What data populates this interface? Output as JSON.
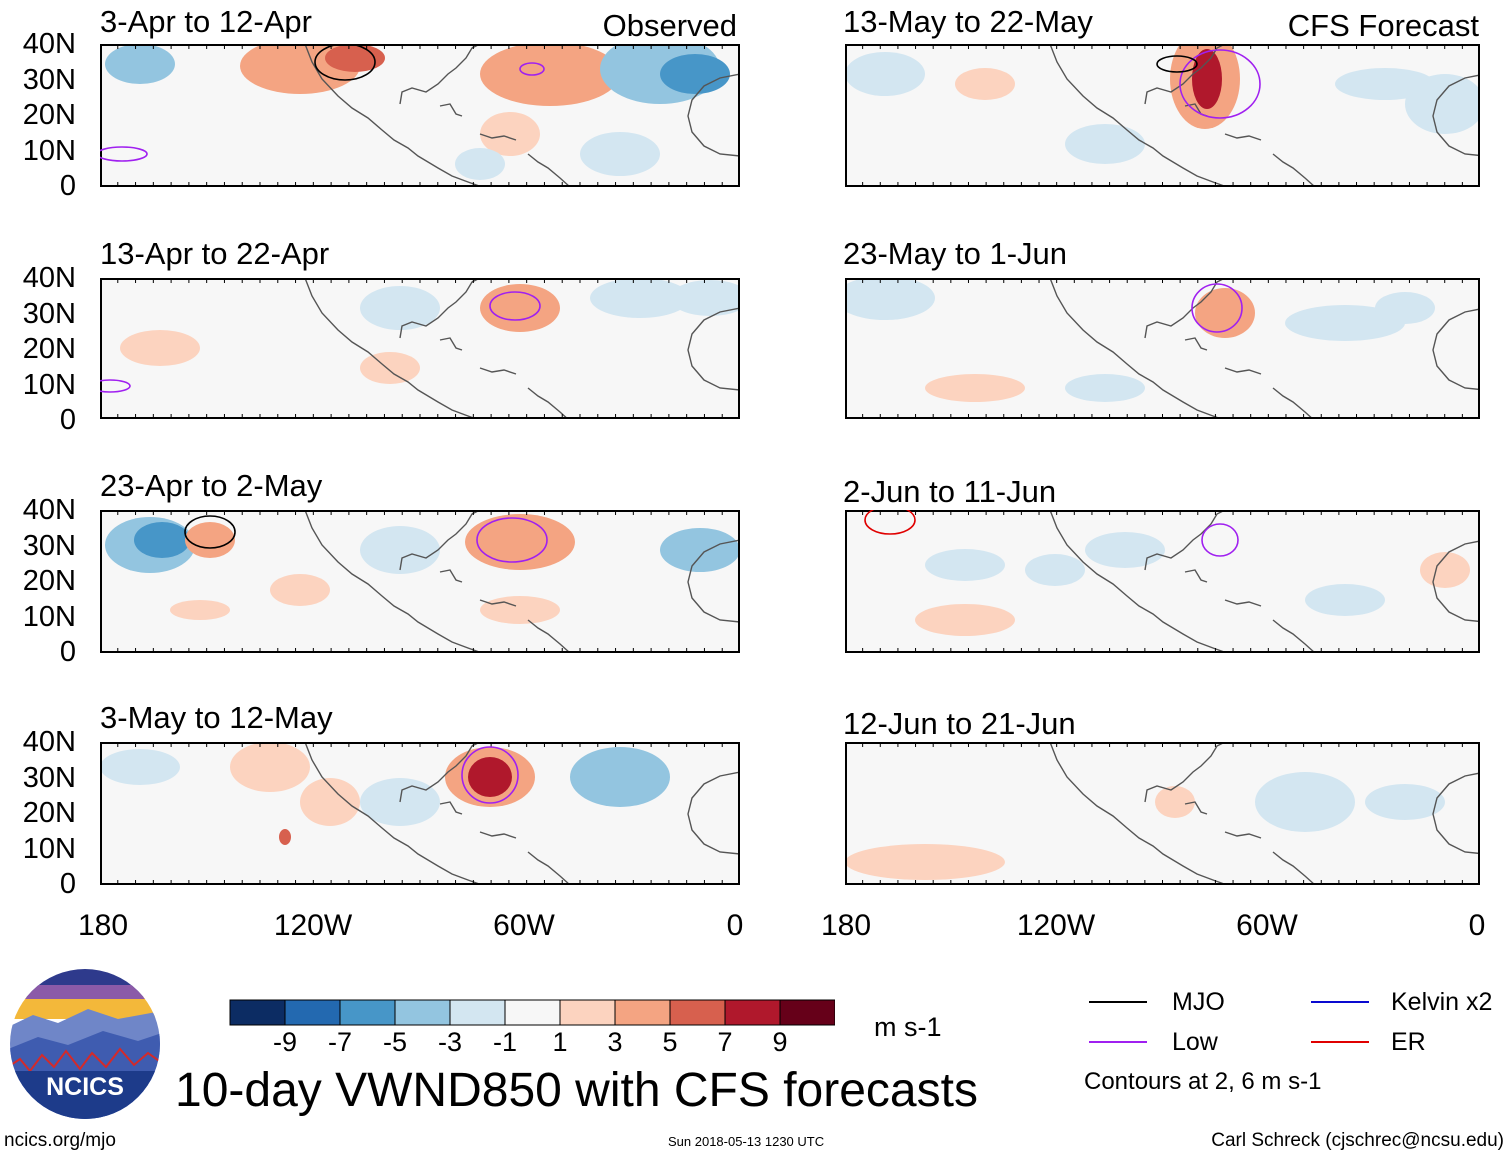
{
  "panels": [
    {
      "title": "3-Apr to 12-Apr"
    },
    {
      "title": "13-Apr to 22-Apr"
    },
    {
      "title": "23-Apr to 2-May"
    },
    {
      "title": "3-May to 12-May"
    },
    {
      "title": "13-May to 22-May"
    },
    {
      "title": "23-May to 1-Jun"
    },
    {
      "title": "2-Jun to 11-Jun"
    },
    {
      "title": "12-Jun to 21-Jun"
    }
  ],
  "column_headers": {
    "left": "Observed",
    "right": "CFS Forecast"
  },
  "lat_labels": [
    "40N",
    "30N",
    "20N",
    "10N",
    "0"
  ],
  "lon_labels": [
    "180",
    "120W",
    "60W",
    "0"
  ],
  "colorbar": {
    "colors": [
      "#0c2c63",
      "#2369b0",
      "#4796c8",
      "#93c5e0",
      "#d3e6f1",
      "#f7f7f7",
      "#fcd3bf",
      "#f4a482",
      "#d7604e",
      "#b0182c",
      "#660019"
    ],
    "ticks": [
      "-9",
      "-7",
      "-5",
      "-3",
      "-1",
      "1",
      "3",
      "5",
      "7",
      "9"
    ],
    "unit": "m s-1"
  },
  "legend": {
    "items": [
      {
        "label": "MJO",
        "color": "#000000"
      },
      {
        "label": "Kelvin x2",
        "color": "#0a0ad0"
      },
      {
        "label": "Low",
        "color": "#a020f0"
      },
      {
        "label": "ER",
        "color": "#e00000"
      }
    ],
    "note": "Contours at 2, 6 m s-1"
  },
  "main_title": "10-day VWND850 with CFS forecasts",
  "logo_text": "NCICS",
  "website": "ncics.org/mjo",
  "timestamp": "Sun 2018-05-13 1230 UTC",
  "credit": "Carl Schreck (cjschrec@ncsu.edu)"
}
